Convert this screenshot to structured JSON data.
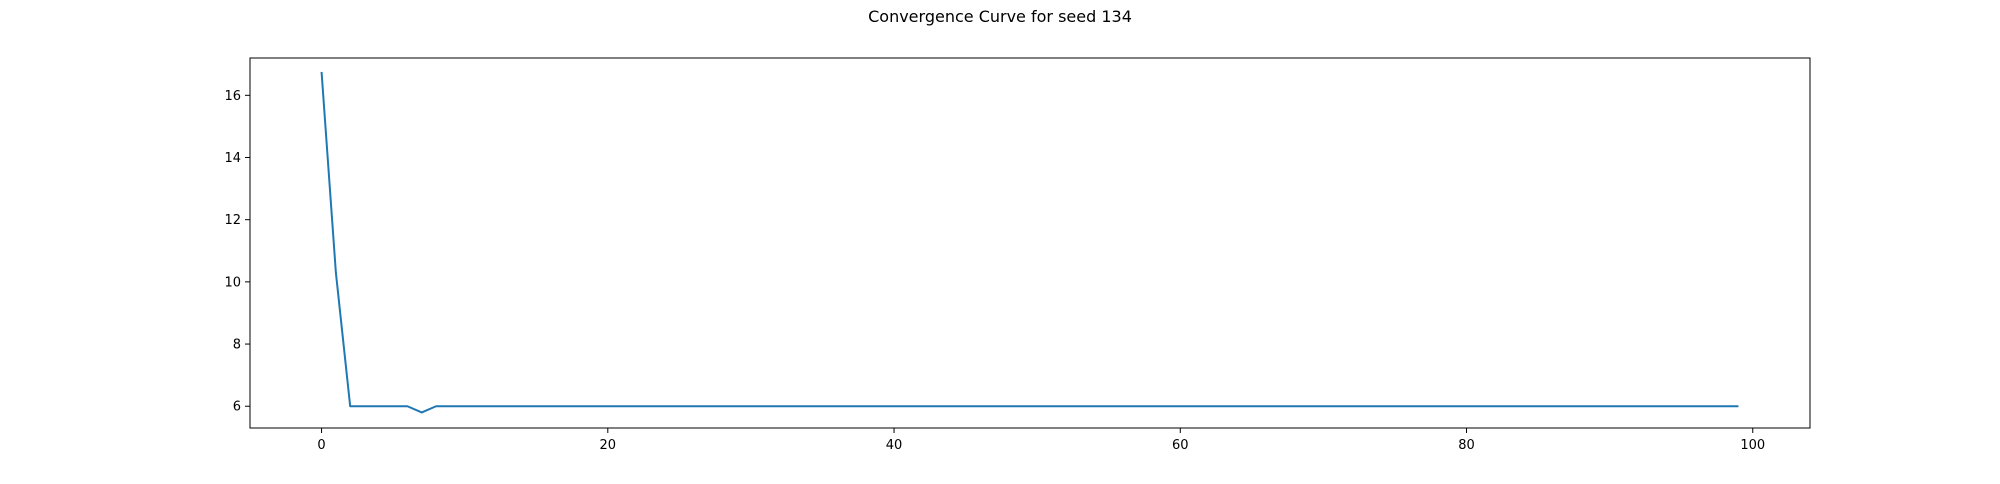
{
  "chart_data": {
    "type": "line",
    "title": "Convergence Curve for seed 134",
    "xlabel": "",
    "ylabel": "",
    "xlim": [
      -5,
      104
    ],
    "ylim": [
      5.3,
      17.2
    ],
    "xticks": [
      0,
      20,
      40,
      60,
      80,
      100
    ],
    "yticks": [
      6,
      8,
      10,
      12,
      14,
      16
    ],
    "grid": false,
    "color": "#1f77b4",
    "series": [
      {
        "x": [
          0,
          1,
          2,
          3,
          4,
          5,
          6,
          7,
          8,
          99
        ],
        "y": [
          16.75,
          10.3,
          6.0,
          6.0,
          6.0,
          6.0,
          6.0,
          5.8,
          6.0,
          6.0
        ]
      }
    ]
  }
}
